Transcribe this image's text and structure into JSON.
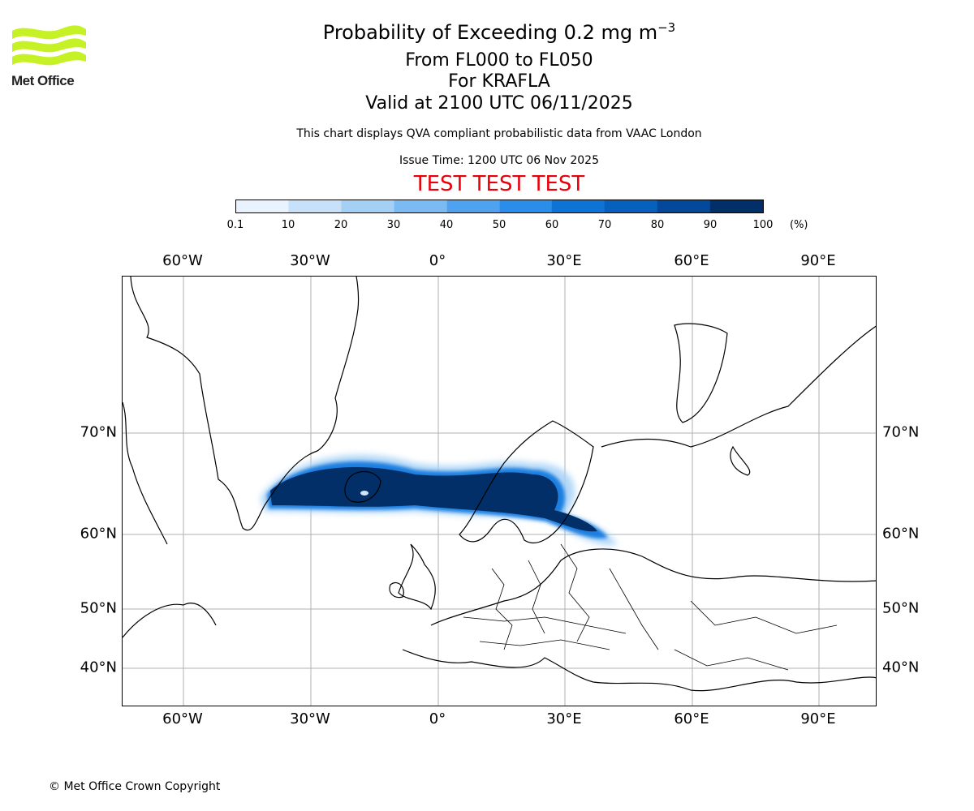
{
  "header": {
    "title_main": "Probability of Exceeding 0.2 mg m",
    "title_exp": "−3",
    "flight_levels": "From FL000 to FL050",
    "volcano": "For KRAFLA",
    "valid_time": "Valid at 2100 UTC 06/11/2025",
    "description": "This chart displays QVA compliant probabilistic data from VAAC London",
    "issue_time": "Issue Time: 1200 UTC 06 Nov 2025",
    "test_banner": "TEST TEST TEST"
  },
  "logo": {
    "text": "Met Office"
  },
  "colorbar": {
    "ticks": [
      "0.1",
      "10",
      "20",
      "30",
      "40",
      "50",
      "60",
      "70",
      "80",
      "90",
      "100"
    ],
    "unit": "(%)",
    "colors": [
      "#e8f3fd",
      "#c6e1f9",
      "#a5d0f6",
      "#7cbaf3",
      "#4fa2f0",
      "#2a8de9",
      "#0d74d6",
      "#0760bb",
      "#03489a",
      "#022f67"
    ]
  },
  "map": {
    "lon_labels": [
      "60°W",
      "30°W",
      "0°",
      "30°E",
      "60°E",
      "90°E"
    ],
    "lat_labels": [
      "70°N",
      "60°N",
      "50°N",
      "40°N"
    ],
    "colors": {
      "land_line": "#000000",
      "grid": "#b0b0b0"
    }
  },
  "footer": {
    "copyright": "© Met Office Crown Copyright"
  }
}
